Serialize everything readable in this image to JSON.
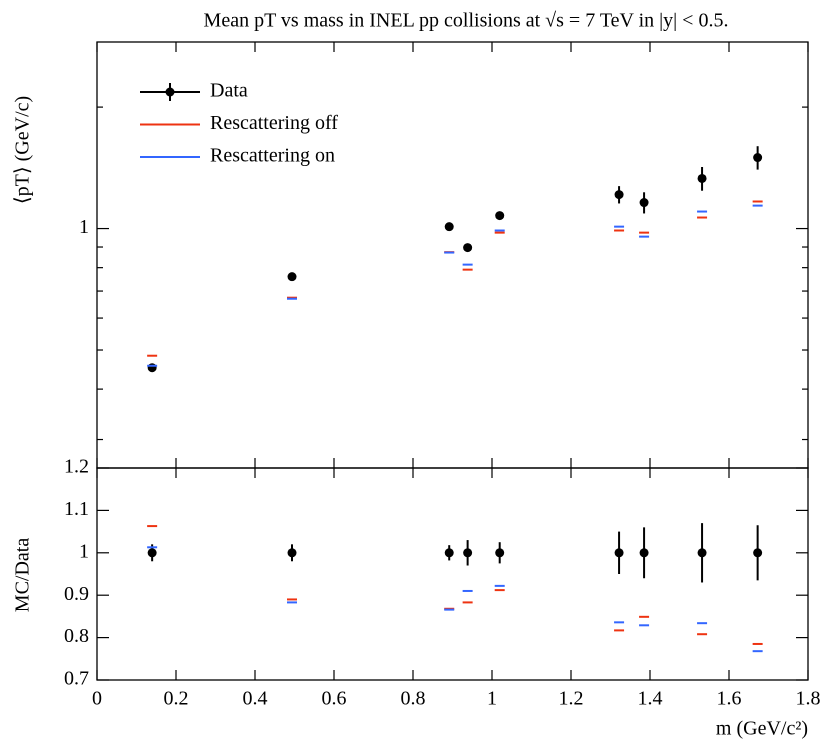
{
  "chart_data": [
    {
      "type": "scatter",
      "title": "Mean pT vs mass in INEL pp collisions at √s = 7 TeV in |y| < 0.5.",
      "y_label": "⟨pT⟩ (GeV/c)",
      "log_y": true,
      "xlim": [
        0,
        1.8
      ],
      "xticks": [
        0,
        0.2,
        0.4,
        0.6,
        0.8,
        1,
        1.2,
        1.4,
        1.6,
        1.8
      ],
      "ylim": [
        0.255,
        2.9
      ],
      "yticks": [
        1
      ],
      "yminorticks": [
        0.3,
        0.4,
        0.5,
        0.6,
        0.7,
        0.8,
        0.9,
        2
      ],
      "legend": "upper left",
      "x": [
        0.1396,
        0.4937,
        0.8917,
        0.9383,
        1.0195,
        1.3217,
        1.385,
        1.5318,
        1.6725
      ],
      "series": [
        {
          "name": "Data",
          "color": "#000000",
          "marker": "point",
          "values": [
            0.452,
            0.76,
            1.011,
            0.897,
            1.077,
            1.214,
            1.16,
            1.331,
            1.5
          ],
          "errors": [
            0.006,
            0.006,
            0.01,
            0.02,
            0.02,
            0.06,
            0.07,
            0.09,
            0.1
          ]
        },
        {
          "name": "Rescattering off",
          "color": "#ee3311",
          "marker": "dash",
          "values": [
            0.484,
            0.674,
            0.874,
            0.791,
            0.977,
            0.989,
            0.977,
            1.065,
            1.167
          ]
        },
        {
          "name": "Rescattering on",
          "color": "#3366ff",
          "marker": "dash",
          "values": [
            0.457,
            0.67,
            0.872,
            0.814,
            0.989,
            1.011,
            0.955,
            1.102,
            1.14
          ]
        }
      ]
    },
    {
      "type": "scatter",
      "y_label": "MC/Data",
      "x_label": "m (GeV/c²)",
      "log_y": false,
      "xlim": [
        0,
        1.8
      ],
      "xticks": [
        0,
        0.2,
        0.4,
        0.6,
        0.8,
        1,
        1.2,
        1.4,
        1.6,
        1.8
      ],
      "ylim": [
        0.7,
        1.2
      ],
      "yticks": [
        0.7,
        0.8,
        0.9,
        1,
        1.1,
        1.2
      ],
      "x": [
        0.1396,
        0.4937,
        0.8917,
        0.9383,
        1.0195,
        1.3217,
        1.385,
        1.5318,
        1.6725
      ],
      "series": [
        {
          "color": "#000000",
          "marker": "point",
          "values": [
            1,
            1,
            1,
            1,
            1,
            1,
            1,
            1,
            1
          ],
          "errors": [
            0.02,
            0.02,
            0.018,
            0.03,
            0.025,
            0.05,
            0.06,
            0.07,
            0.065
          ]
        },
        {
          "color": "#ee3311",
          "marker": "dash",
          "values": [
            1.063,
            0.89,
            0.868,
            0.883,
            0.912,
            0.817,
            0.849,
            0.808,
            0.785
          ]
        },
        {
          "color": "#3366ff",
          "marker": "dash",
          "values": [
            1.013,
            0.883,
            0.866,
            0.91,
            0.922,
            0.836,
            0.829,
            0.834,
            0.768
          ]
        }
      ]
    }
  ]
}
